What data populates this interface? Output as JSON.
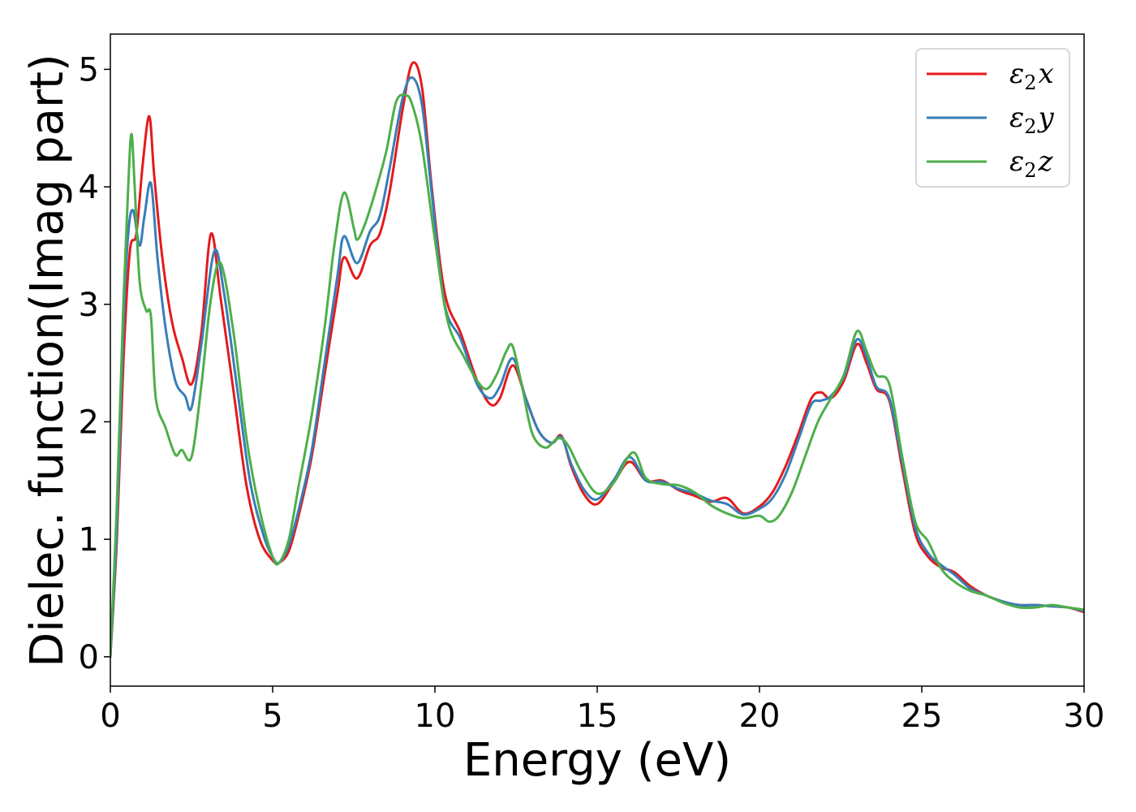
{
  "chart_data": {
    "type": "line",
    "xlabel": "Energy (eV)",
    "ylabel": "Dielec. function(Imag part)",
    "xlim": [
      0,
      30
    ],
    "ylim": [
      -0.25,
      5.3
    ],
    "xticks": [
      0,
      5,
      10,
      15,
      20,
      25,
      30
    ],
    "xtick_labels": [
      "0",
      "5",
      "10",
      "15",
      "20",
      "25",
      "30"
    ],
    "yticks": [
      0,
      1,
      2,
      3,
      4,
      5
    ],
    "ytick_labels": [
      "0",
      "1",
      "2",
      "3",
      "4",
      "5"
    ],
    "grid": false,
    "legend_position": "top-right",
    "series": [
      {
        "name": "ε2x",
        "legend_base": "ε",
        "legend_sub": "2",
        "legend_suffix": "x",
        "color": "#e41a1c",
        "x": [
          0,
          0.2,
          0.4,
          0.6,
          0.8,
          1.0,
          1.2,
          1.35,
          1.6,
          1.9,
          2.2,
          2.5,
          2.8,
          3.1,
          3.4,
          3.8,
          4.2,
          4.6,
          5.0,
          5.2,
          5.5,
          5.8,
          6.2,
          6.6,
          7.0,
          7.2,
          7.6,
          8.0,
          8.3,
          8.6,
          9.0,
          9.3,
          9.6,
          9.9,
          10.3,
          10.8,
          11.3,
          11.7,
          12.0,
          12.4,
          12.8,
          13.2,
          13.6,
          13.9,
          14.2,
          14.6,
          15.0,
          15.5,
          16.0,
          16.5,
          17.0,
          17.5,
          18.0,
          18.5,
          19.0,
          19.5,
          20.0,
          20.4,
          20.8,
          21.2,
          21.6,
          21.9,
          22.2,
          22.6,
          23.0,
          23.3,
          23.6,
          24.0,
          24.4,
          24.8,
          25.2,
          25.6,
          26.0,
          26.5,
          27.0,
          27.5,
          28.0,
          28.5,
          29.0,
          29.5,
          30.0
        ],
        "y": [
          0.0,
          1.0,
          2.5,
          3.45,
          3.6,
          4.2,
          4.6,
          4.1,
          3.4,
          2.85,
          2.55,
          2.32,
          2.75,
          3.6,
          3.05,
          2.25,
          1.45,
          1.0,
          0.82,
          0.8,
          0.9,
          1.2,
          1.7,
          2.4,
          3.1,
          3.4,
          3.22,
          3.5,
          3.6,
          3.95,
          4.65,
          5.05,
          4.85,
          4.0,
          3.1,
          2.75,
          2.35,
          2.15,
          2.2,
          2.48,
          2.2,
          1.92,
          1.82,
          1.88,
          1.62,
          1.38,
          1.3,
          1.48,
          1.66,
          1.5,
          1.5,
          1.42,
          1.37,
          1.32,
          1.35,
          1.22,
          1.28,
          1.4,
          1.62,
          1.9,
          2.2,
          2.25,
          2.2,
          2.35,
          2.66,
          2.5,
          2.28,
          2.18,
          1.6,
          1.05,
          0.85,
          0.76,
          0.72,
          0.6,
          0.52,
          0.47,
          0.44,
          0.44,
          0.43,
          0.42,
          0.38
        ]
      },
      {
        "name": "ε2y",
        "legend_base": "ε",
        "legend_sub": "2",
        "legend_suffix": "y",
        "color": "#377eb8",
        "x": [
          0,
          0.2,
          0.4,
          0.55,
          0.7,
          0.9,
          1.05,
          1.25,
          1.45,
          1.7,
          2.0,
          2.3,
          2.5,
          2.8,
          3.2,
          3.5,
          3.9,
          4.3,
          4.7,
          5.0,
          5.2,
          5.5,
          5.8,
          6.2,
          6.6,
          7.0,
          7.2,
          7.6,
          8.0,
          8.3,
          8.6,
          9.0,
          9.3,
          9.6,
          9.9,
          10.3,
          10.8,
          11.3,
          11.7,
          12.0,
          12.4,
          12.8,
          13.2,
          13.6,
          13.9,
          14.2,
          14.6,
          15.0,
          15.5,
          16.0,
          16.5,
          17.0,
          17.5,
          18.0,
          18.5,
          19.0,
          19.5,
          20.0,
          20.4,
          20.8,
          21.2,
          21.6,
          21.9,
          22.2,
          22.6,
          23.0,
          23.3,
          23.6,
          24.0,
          24.4,
          24.8,
          25.2,
          25.6,
          26.0,
          26.5,
          27.0,
          27.5,
          28.0,
          28.5,
          29.0,
          29.5,
          30.0
        ],
        "y": [
          0.0,
          1.1,
          2.8,
          3.6,
          3.8,
          3.5,
          3.75,
          4.03,
          3.4,
          2.8,
          2.35,
          2.22,
          2.12,
          2.65,
          3.45,
          3.1,
          2.3,
          1.5,
          1.05,
          0.85,
          0.8,
          0.95,
          1.25,
          1.75,
          2.5,
          3.25,
          3.58,
          3.35,
          3.62,
          3.75,
          4.15,
          4.75,
          4.93,
          4.7,
          3.95,
          3.0,
          2.7,
          2.32,
          2.2,
          2.3,
          2.54,
          2.2,
          1.92,
          1.82,
          1.87,
          1.64,
          1.42,
          1.34,
          1.5,
          1.7,
          1.5,
          1.49,
          1.43,
          1.39,
          1.33,
          1.3,
          1.21,
          1.26,
          1.35,
          1.55,
          1.85,
          2.15,
          2.18,
          2.22,
          2.38,
          2.7,
          2.55,
          2.3,
          2.2,
          1.65,
          1.1,
          0.88,
          0.78,
          0.7,
          0.58,
          0.52,
          0.47,
          0.44,
          0.44,
          0.43,
          0.42,
          0.39
        ]
      },
      {
        "name": "ε2z",
        "legend_base": "ε",
        "legend_sub": "2",
        "legend_suffix": "z",
        "color": "#4daf4a",
        "x": [
          0,
          0.2,
          0.4,
          0.55,
          0.65,
          0.75,
          0.9,
          1.1,
          1.25,
          1.4,
          1.7,
          2.0,
          2.2,
          2.5,
          2.8,
          3.1,
          3.4,
          3.8,
          4.2,
          4.6,
          5.0,
          5.2,
          5.5,
          5.8,
          6.2,
          6.6,
          6.9,
          7.2,
          7.5,
          7.6,
          7.8,
          8.1,
          8.5,
          8.8,
          9.1,
          9.3,
          9.6,
          10.0,
          10.4,
          10.9,
          11.3,
          11.6,
          11.9,
          12.2,
          12.4,
          12.7,
          13.0,
          13.4,
          13.8,
          14.1,
          14.5,
          15.0,
          15.5,
          16.1,
          16.5,
          17.0,
          17.5,
          18.0,
          18.5,
          19.0,
          19.5,
          20.0,
          20.3,
          20.6,
          21.0,
          21.4,
          21.8,
          22.2,
          22.6,
          23.0,
          23.3,
          23.6,
          24.0,
          24.4,
          24.8,
          25.2,
          25.6,
          26.0,
          26.5,
          27.0,
          27.5,
          28.0,
          28.5,
          29.0,
          29.5,
          30.0
        ],
        "y": [
          0.0,
          1.3,
          3.0,
          4.0,
          4.45,
          4.0,
          3.2,
          2.95,
          2.9,
          2.2,
          1.95,
          1.72,
          1.76,
          1.7,
          2.3,
          3.05,
          3.35,
          2.75,
          1.85,
          1.25,
          0.85,
          0.8,
          1.0,
          1.45,
          2.05,
          2.8,
          3.5,
          3.95,
          3.65,
          3.55,
          3.65,
          3.9,
          4.3,
          4.72,
          4.78,
          4.7,
          4.35,
          3.55,
          2.85,
          2.55,
          2.35,
          2.28,
          2.4,
          2.6,
          2.64,
          2.28,
          1.9,
          1.78,
          1.86,
          1.8,
          1.58,
          1.39,
          1.48,
          1.74,
          1.52,
          1.47,
          1.46,
          1.4,
          1.29,
          1.22,
          1.18,
          1.2,
          1.15,
          1.2,
          1.4,
          1.7,
          2.0,
          2.2,
          2.4,
          2.77,
          2.6,
          2.4,
          2.32,
          1.7,
          1.15,
          0.98,
          0.75,
          0.64,
          0.56,
          0.52,
          0.46,
          0.42,
          0.42,
          0.44,
          0.42,
          0.4
        ]
      }
    ]
  }
}
